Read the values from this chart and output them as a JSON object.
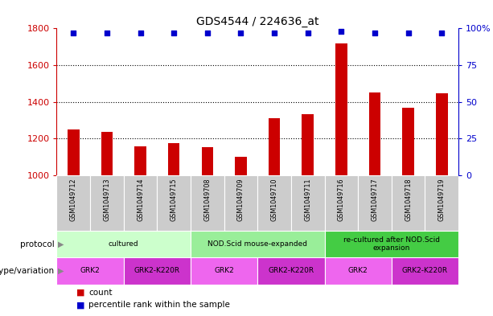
{
  "title": "GDS4544 / 224636_at",
  "samples": [
    "GSM1049712",
    "GSM1049713",
    "GSM1049714",
    "GSM1049715",
    "GSM1049708",
    "GSM1049709",
    "GSM1049710",
    "GSM1049711",
    "GSM1049716",
    "GSM1049717",
    "GSM1049718",
    "GSM1049719"
  ],
  "counts": [
    1248,
    1238,
    1158,
    1175,
    1152,
    1102,
    1310,
    1335,
    1720,
    1450,
    1370,
    1445
  ],
  "percentiles": [
    97,
    97,
    97,
    97,
    97,
    97,
    97,
    97,
    98,
    97,
    97,
    97
  ],
  "bar_color": "#cc0000",
  "dot_color": "#0000cc",
  "ylim_left": [
    1000,
    1800
  ],
  "ylim_right": [
    0,
    100
  ],
  "yticks_left": [
    1000,
    1200,
    1400,
    1600,
    1800
  ],
  "yticks_right": [
    0,
    25,
    50,
    75,
    100
  ],
  "right_tick_labels": [
    "0",
    "25",
    "50",
    "75",
    "100%"
  ],
  "protocol_groups": [
    {
      "label": "cultured",
      "start": 0,
      "end": 3,
      "color": "#ccffcc"
    },
    {
      "label": "NOD.Scid mouse-expanded",
      "start": 4,
      "end": 7,
      "color": "#99ee99"
    },
    {
      "label": "re-cultured after NOD.Scid\nexpansion",
      "start": 8,
      "end": 11,
      "color": "#44cc44"
    }
  ],
  "genotype_groups": [
    {
      "label": "GRK2",
      "start": 0,
      "end": 1,
      "color": "#ee66ee"
    },
    {
      "label": "GRK2-K220R",
      "start": 2,
      "end": 3,
      "color": "#cc33cc"
    },
    {
      "label": "GRK2",
      "start": 4,
      "end": 5,
      "color": "#ee66ee"
    },
    {
      "label": "GRK2-K220R",
      "start": 6,
      "end": 7,
      "color": "#cc33cc"
    },
    {
      "label": "GRK2",
      "start": 8,
      "end": 9,
      "color": "#ee66ee"
    },
    {
      "label": "GRK2-K220R",
      "start": 10,
      "end": 11,
      "color": "#cc33cc"
    }
  ],
  "bg_color": "#ffffff",
  "sample_bg_color": "#cccccc",
  "bar_width": 0.35
}
